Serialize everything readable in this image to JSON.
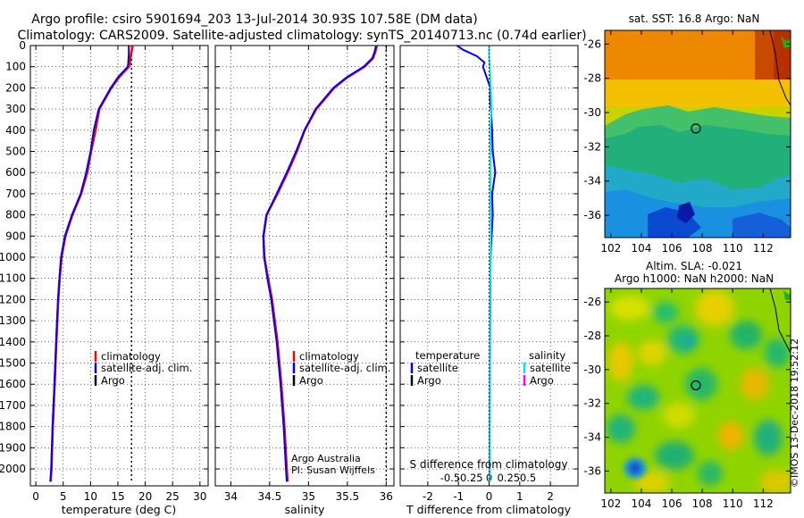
{
  "header": {
    "line1": "Argo profile: csiro 5901694_203 13-Jul-2014 30.93S 107.58E (DM data)",
    "line2": "Climatology: CARS2009. Satellite-adjusted climatology: synTS_20140713.nc (0.74d earlier)"
  },
  "credit": {
    "org": "Argo Australia",
    "pi": "PI: Susan Wijffels"
  },
  "sidebar_stamp": "©IMOS 13-Dec-2018 19:52:12",
  "colors": {
    "climatology": "#ff0000",
    "satellite": "#0000ff",
    "argo": "#000000",
    "sal_satellite": "#00e5e5",
    "sal_argo": "#ff00ff"
  },
  "maps": {
    "sst": {
      "title": "sat. SST: 16.8 Argo: NaN",
      "lon_ticks": [
        "102",
        "104",
        "106",
        "108",
        "110",
        "112"
      ],
      "lat_ticks": [
        "-26",
        "-28",
        "-30",
        "-32",
        "-34",
        "-36"
      ],
      "float_lon": 107.58,
      "float_lat": -30.93
    },
    "sla": {
      "title1": "Altim. SLA: -0.021",
      "title2": "Argo h1000: NaN h2000: NaN",
      "lon_ticks": [
        "102",
        "104",
        "106",
        "108",
        "110",
        "112"
      ],
      "lat_ticks": [
        "-26",
        "-28",
        "-30",
        "-32",
        "-34",
        "-36"
      ],
      "float_lon": 107.58,
      "float_lat": -30.93
    }
  },
  "chart_data": [
    {
      "type": "line",
      "title": "",
      "xlabel": "temperature (deg C)",
      "ylabel": "",
      "xlim": [
        -1,
        31.5
      ],
      "ylim": [
        2080,
        0
      ],
      "x_ticks": [
        0,
        5,
        10,
        15,
        20,
        25,
        30
      ],
      "y_ticks": [
        0,
        100,
        200,
        300,
        400,
        500,
        600,
        700,
        800,
        900,
        1000,
        1100,
        1200,
        1300,
        1400,
        1500,
        1600,
        1700,
        1800,
        1900,
        2000
      ],
      "legend": [
        "climatology",
        "satellite-adj. clim.",
        "Argo"
      ],
      "dotted_x": 17.5,
      "series": [
        {
          "name": "climatology",
          "depth": [
            0,
            40,
            80,
            100,
            150,
            200,
            300,
            400,
            500,
            600,
            700,
            800,
            900,
            1000,
            1100,
            1200,
            1400,
            1600,
            1800,
            2000,
            2060
          ],
          "values": [
            17.7,
            17.4,
            17.2,
            17.0,
            15.2,
            13.8,
            11.6,
            10.9,
            10.1,
            9.4,
            8.3,
            6.7,
            5.4,
            4.7,
            4.35,
            4.1,
            3.75,
            3.45,
            3.1,
            2.85,
            2.7
          ]
        },
        {
          "name": "satellite-adj. clim.",
          "depth": [
            0,
            40,
            80,
            100,
            150,
            200,
            300,
            400,
            500,
            600,
            700,
            800,
            900,
            1000,
            1100,
            1200,
            1400,
            1600,
            1800,
            2000,
            2060
          ],
          "values": [
            17.0,
            17.0,
            16.9,
            16.8,
            15.0,
            13.7,
            11.5,
            10.6,
            10.0,
            9.2,
            8.2,
            6.6,
            5.3,
            4.6,
            4.3,
            4.05,
            3.7,
            3.4,
            3.05,
            2.8,
            2.65
          ]
        }
      ]
    },
    {
      "type": "line",
      "title": "",
      "xlabel": "salinity",
      "ylabel": "",
      "xlim": [
        33.8,
        36.1
      ],
      "ylim": [
        2080,
        0
      ],
      "x_ticks": [
        34,
        34.5,
        35,
        35.5,
        36
      ],
      "legend": [
        "climatology",
        "satellite-adj. clim.",
        "Argo"
      ],
      "dotted_x": 36.0,
      "series": [
        {
          "name": "climatology",
          "depth": [
            0,
            30,
            60,
            100,
            150,
            200,
            300,
            400,
            500,
            600,
            700,
            800,
            900,
            1000,
            1100,
            1200,
            1400,
            1600,
            1800,
            2000,
            2060
          ],
          "values": [
            35.88,
            35.86,
            35.83,
            35.72,
            35.5,
            35.33,
            35.1,
            34.95,
            34.85,
            34.73,
            34.6,
            34.46,
            34.42,
            34.43,
            34.48,
            34.53,
            34.6,
            34.65,
            34.69,
            34.72,
            34.73
          ]
        },
        {
          "name": "satellite-adj. clim.",
          "depth": [
            0,
            30,
            60,
            100,
            150,
            200,
            300,
            400,
            500,
            600,
            700,
            800,
            900,
            1000,
            1100,
            1200,
            1400,
            1600,
            1800,
            2000,
            2060
          ],
          "values": [
            35.87,
            35.85,
            35.82,
            35.71,
            35.49,
            35.32,
            35.09,
            34.95,
            34.84,
            34.72,
            34.59,
            34.46,
            34.42,
            34.43,
            34.47,
            34.52,
            34.59,
            34.64,
            34.68,
            34.71,
            34.72
          ]
        }
      ]
    },
    {
      "type": "line",
      "title": "",
      "xlabel": "T difference from climatology",
      "ylabel": "",
      "xlim": [
        -2.9,
        2.9
      ],
      "ylim": [
        2080,
        0
      ],
      "x_ticks": [
        -2,
        -1,
        0,
        1,
        2
      ],
      "top_axis_label": "S difference from climatology",
      "top_ticks": [
        -0.5,
        -0.25,
        0,
        0.25,
        0.5
      ],
      "top_tick_labels": [
        "-0.5",
        "-0.25",
        "0",
        "0.25",
        "0.5"
      ],
      "legend_left_title": "temperature",
      "legend_right_title": "salinity",
      "legend_left": [
        "satellite",
        "Argo"
      ],
      "legend_right": [
        "satellite",
        "Argo"
      ],
      "series": [
        {
          "name": "temperature satellite",
          "depth": [
            0,
            20,
            50,
            80,
            100,
            150,
            200,
            250,
            300,
            400,
            500,
            600,
            700,
            800,
            1000,
            1200,
            1500,
            1800,
            2000,
            2060
          ],
          "values": [
            -1.05,
            -0.85,
            -0.4,
            -0.15,
            -0.2,
            -0.08,
            0.04,
            0.03,
            0.06,
            0.1,
            0.12,
            0.2,
            0.1,
            0.12,
            0.05,
            0.04,
            0.03,
            0.02,
            0.02,
            0.02
          ]
        },
        {
          "name": "salinity satellite",
          "depth": [
            0,
            50,
            100,
            200,
            300,
            400,
            500,
            700,
            900,
            1200,
            1500,
            1800,
            2000,
            2060
          ],
          "values": [
            0.0,
            0.0,
            0.02,
            0.05,
            0.07,
            0.03,
            0.05,
            0.04,
            0.05,
            0.03,
            0.02,
            0.02,
            0.02,
            0.02
          ]
        }
      ]
    }
  ]
}
